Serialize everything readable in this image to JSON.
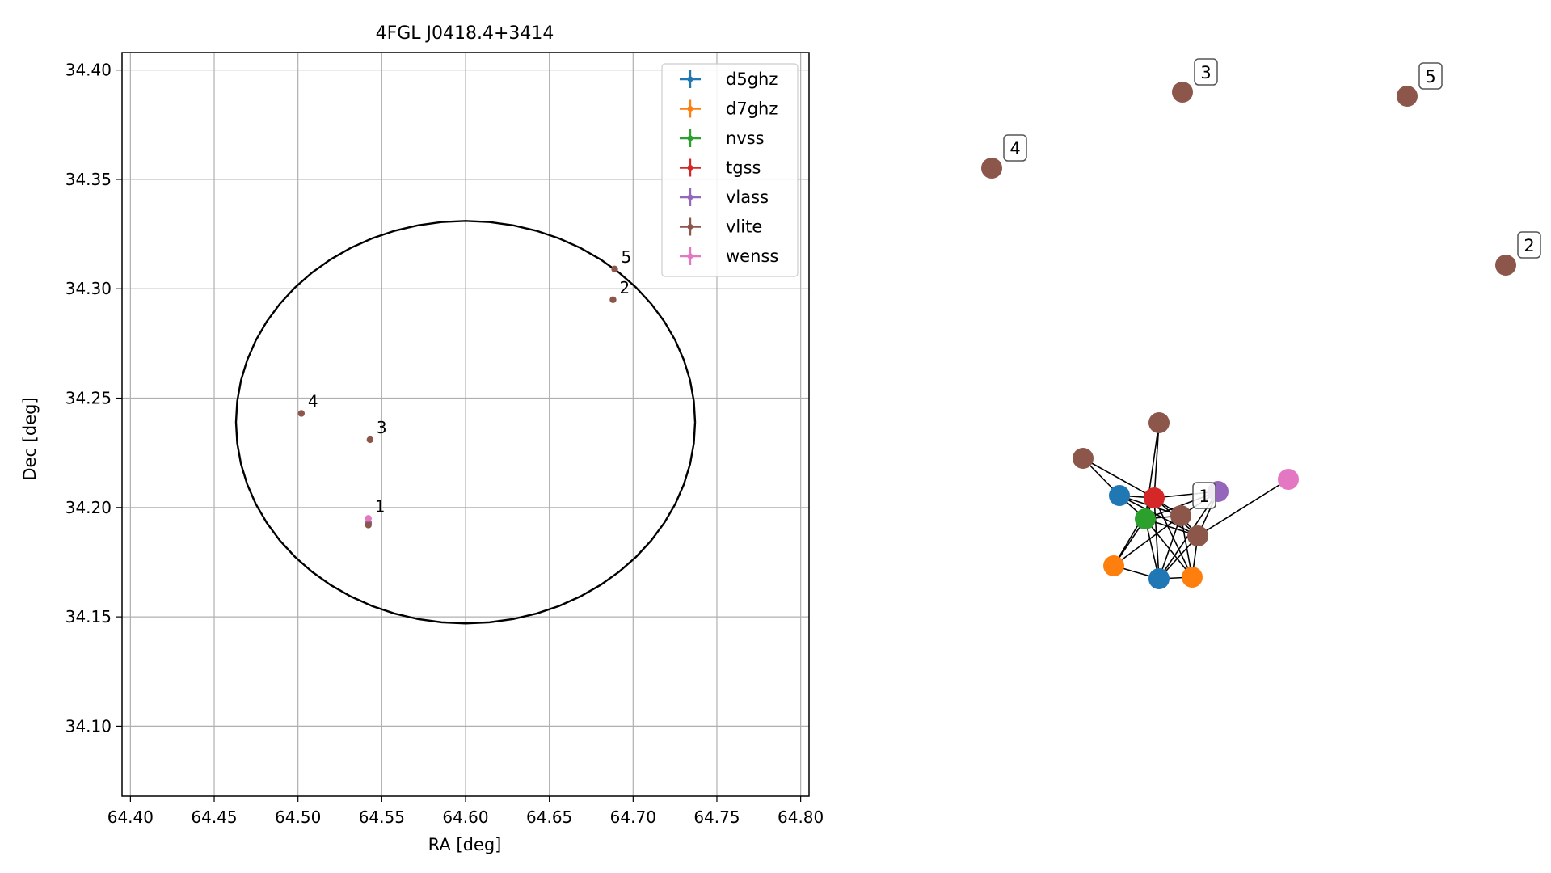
{
  "chart_data": [
    {
      "type": "scatter",
      "title": "4FGL J0418.4+3414",
      "xlabel": "RA [deg]",
      "ylabel": "Dec [deg]",
      "xlim": [
        64.395,
        64.805
      ],
      "ylim": [
        34.068,
        34.408
      ],
      "xticks": [
        {
          "v": 64.4,
          "label": "64.40"
        },
        {
          "v": 64.45,
          "label": "64.45"
        },
        {
          "v": 64.5,
          "label": "64.50"
        },
        {
          "v": 64.55,
          "label": "64.55"
        },
        {
          "v": 64.6,
          "label": "64.60"
        },
        {
          "v": 64.65,
          "label": "64.65"
        },
        {
          "v": 64.7,
          "label": "64.70"
        },
        {
          "v": 64.75,
          "label": "64.75"
        },
        {
          "v": 64.8,
          "label": "64.80"
        }
      ],
      "yticks": [
        {
          "v": 34.1,
          "label": "34.10"
        },
        {
          "v": 34.15,
          "label": "34.15"
        },
        {
          "v": 34.2,
          "label": "34.20"
        },
        {
          "v": 34.25,
          "label": "34.25"
        },
        {
          "v": 34.3,
          "label": "34.30"
        },
        {
          "v": 34.35,
          "label": "34.35"
        },
        {
          "v": 34.4,
          "label": "34.40"
        }
      ],
      "grid": true,
      "legend_position": "top-right",
      "ellipse": {
        "center": [
          64.6,
          34.239
        ],
        "ra_radius": 0.137,
        "dec_radius": 0.092,
        "color": "#000000"
      },
      "series": [
        {
          "name": "d5ghz",
          "color": "#1f77b4",
          "points": [
            [
              64.542,
              34.193
            ]
          ]
        },
        {
          "name": "d7ghz",
          "color": "#ff7f0e",
          "points": [
            [
              64.542,
              34.193
            ]
          ]
        },
        {
          "name": "nvss",
          "color": "#2ca02c",
          "points": [
            [
              64.542,
              34.193
            ]
          ]
        },
        {
          "name": "tgss",
          "color": "#d62728",
          "points": [
            [
              64.542,
              34.193
            ]
          ]
        },
        {
          "name": "vlass",
          "color": "#9467bd",
          "points": [
            [
              64.542,
              34.193
            ]
          ]
        },
        {
          "name": "vlite",
          "color": "#8c564b",
          "points": [
            [
              64.542,
              34.192
            ],
            [
              64.688,
              34.295
            ],
            [
              64.543,
              34.231
            ],
            [
              64.502,
              34.243
            ],
            [
              64.689,
              34.309
            ]
          ]
        },
        {
          "name": "wenss",
          "color": "#e377c2",
          "points": [
            [
              64.542,
              34.195
            ]
          ]
        }
      ],
      "point_labels": [
        {
          "text": "1",
          "x": 64.542,
          "y": 34.195
        },
        {
          "text": "2",
          "x": 64.688,
          "y": 34.295
        },
        {
          "text": "3",
          "x": 64.543,
          "y": 34.231
        },
        {
          "text": "4",
          "x": 64.502,
          "y": 34.243
        },
        {
          "text": "5",
          "x": 64.689,
          "y": 34.309
        }
      ]
    },
    {
      "type": "network",
      "nodes": [
        {
          "id": "n_vlite_a",
          "color": "#8c564b"
        },
        {
          "id": "n_vlite_b",
          "color": "#8c564b"
        },
        {
          "id": "n_d5_a",
          "color": "#1f77b4"
        },
        {
          "id": "n_tgss",
          "color": "#d62728"
        },
        {
          "id": "n_vlass",
          "color": "#9467bd"
        },
        {
          "id": "n_wenss",
          "color": "#e377c2"
        },
        {
          "id": "n_nvss",
          "color": "#2ca02c"
        },
        {
          "id": "n_vlite_c",
          "color": "#8c564b",
          "label": "1"
        },
        {
          "id": "n_vlite_d",
          "color": "#8c564b"
        },
        {
          "id": "n_d7_a",
          "color": "#ff7f0e"
        },
        {
          "id": "n_d5_b",
          "color": "#1f77b4"
        },
        {
          "id": "n_d7_b",
          "color": "#ff7f0e"
        },
        {
          "id": "n_vlite_2",
          "color": "#8c564b",
          "label": "2"
        },
        {
          "id": "n_vlite_3",
          "color": "#8c564b",
          "label": "3"
        },
        {
          "id": "n_vlite_4",
          "color": "#8c564b",
          "label": "4"
        },
        {
          "id": "n_vlite_5",
          "color": "#8c564b",
          "label": "5"
        }
      ],
      "edges": [
        [
          "n_vlite_a",
          "n_tgss"
        ],
        [
          "n_vlite_a",
          "n_nvss"
        ],
        [
          "n_vlite_b",
          "n_d5_a"
        ],
        [
          "n_vlite_b",
          "n_tgss"
        ],
        [
          "n_d5_a",
          "n_tgss"
        ],
        [
          "n_d5_a",
          "n_nvss"
        ],
        [
          "n_d5_a",
          "n_vlite_c"
        ],
        [
          "n_d5_a",
          "n_vlite_d"
        ],
        [
          "n_tgss",
          "n_vlass"
        ],
        [
          "n_tgss",
          "n_nvss"
        ],
        [
          "n_tgss",
          "n_vlite_c"
        ],
        [
          "n_tgss",
          "n_vlite_d"
        ],
        [
          "n_tgss",
          "n_d5_b"
        ],
        [
          "n_tgss",
          "n_d7_b"
        ],
        [
          "n_tgss",
          "n_d7_a"
        ],
        [
          "n_vlass",
          "n_nvss"
        ],
        [
          "n_vlass",
          "n_vlite_c"
        ],
        [
          "n_vlass",
          "n_vlite_d"
        ],
        [
          "n_vlass",
          "n_d5_b"
        ],
        [
          "n_wenss",
          "n_vlite_d"
        ],
        [
          "n_nvss",
          "n_vlite_c"
        ],
        [
          "n_nvss",
          "n_vlite_d"
        ],
        [
          "n_nvss",
          "n_d7_a"
        ],
        [
          "n_nvss",
          "n_d5_b"
        ],
        [
          "n_nvss",
          "n_d7_b"
        ],
        [
          "n_vlite_c",
          "n_vlite_d"
        ],
        [
          "n_vlite_c",
          "n_d5_b"
        ],
        [
          "n_vlite_c",
          "n_d7_b"
        ],
        [
          "n_vlite_c",
          "n_d7_a"
        ],
        [
          "n_vlite_d",
          "n_d5_b"
        ],
        [
          "n_vlite_d",
          "n_d7_b"
        ],
        [
          "n_d7_a",
          "n_d5_b"
        ],
        [
          "n_d5_b",
          "n_d7_b"
        ]
      ]
    }
  ]
}
